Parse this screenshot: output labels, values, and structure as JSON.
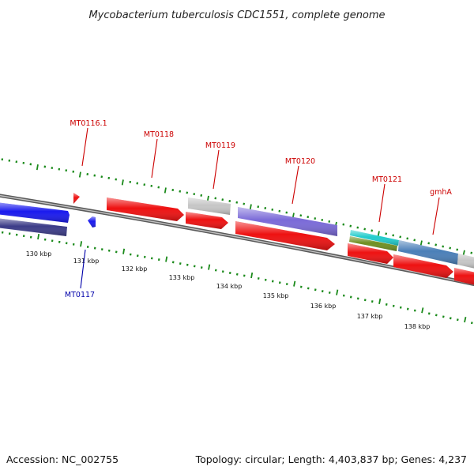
{
  "title": "Mycobacterium tuberculosis CDC1551, complete genome",
  "footer": {
    "accession": "Accession: NC_002755",
    "summary": "Topology: circular; Length: 4,403,837 bp; Genes: 4,237"
  },
  "colors": {
    "tick": "#1a8a1a",
    "backbone": "#8a8a8a",
    "label_forward": "#cc0000",
    "label_reverse": "#0000aa",
    "leader_forward": "#cc0000",
    "leader_reverse": "#0000aa"
  },
  "ruler": {
    "unit": "kbp",
    "labels": [
      "130 kbp",
      "131 kbp",
      "132 kbp",
      "133 kbp",
      "134 kbp",
      "135 kbp",
      "136 kbp",
      "137 kbp",
      "138 kbp"
    ]
  },
  "gene_labels": [
    {
      "text": "MT0116.1",
      "strand": "forward"
    },
    {
      "text": "MT0118",
      "strand": "forward"
    },
    {
      "text": "MT0119",
      "strand": "forward"
    },
    {
      "text": "MT0120",
      "strand": "forward"
    },
    {
      "text": "MT0121",
      "strand": "forward"
    },
    {
      "text": "gmhA",
      "strand": "forward"
    },
    {
      "text": "MT0117",
      "strand": "reverse"
    }
  ],
  "features": [
    {
      "name": "left-blue-cds",
      "color": "#1a1aee"
    },
    {
      "name": "left-navy-gene",
      "color": "#3c3c88"
    },
    {
      "name": "mt0116-1-small-cds",
      "color": "#ee1111"
    },
    {
      "name": "mt0117-small-cds",
      "color": "#1a1aee"
    },
    {
      "name": "mt0118-cds",
      "color": "#ee1111"
    },
    {
      "name": "mt0118-lower-cds",
      "color": "#ee1111"
    },
    {
      "name": "mt0119-gray-feature",
      "color": "#c6c6c6"
    },
    {
      "name": "mt0120-purple-gene",
      "color": "#7a6ad8"
    },
    {
      "name": "mt0120-cds",
      "color": "#ee1111"
    },
    {
      "name": "mt0121-cyan-feature",
      "color": "#22cccc"
    },
    {
      "name": "mt0121-olive-feature",
      "color": "#6e8f22"
    },
    {
      "name": "mt0121-cds",
      "color": "#ee1111"
    },
    {
      "name": "gmha-steelblue-gene",
      "color": "#4a7fb8"
    },
    {
      "name": "gmha-cds",
      "color": "#ee1111"
    },
    {
      "name": "right-gray-feature",
      "color": "#c6c6c6"
    },
    {
      "name": "right-edge-cds",
      "color": "#ee1111"
    }
  ]
}
